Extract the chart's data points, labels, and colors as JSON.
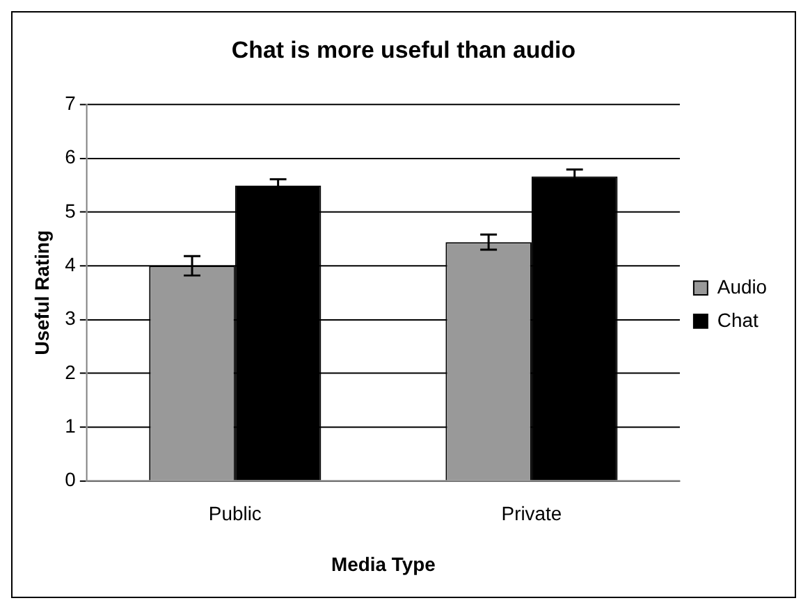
{
  "chart_data": {
    "type": "bar",
    "title": "Chat is more useful than audio",
    "xlabel": "Media Type",
    "ylabel": "Useful Rating",
    "categories": [
      "Public",
      "Private"
    ],
    "series": [
      {
        "name": "Audio",
        "color": "#999999",
        "values": [
          4.0,
          4.44
        ],
        "errors": [
          0.18,
          0.14
        ]
      },
      {
        "name": "Chat",
        "color": "#000000",
        "values": [
          5.49,
          5.66
        ],
        "errors": [
          0.12,
          0.13
        ]
      }
    ],
    "ylim": [
      0,
      7
    ],
    "yticks": [
      0,
      1,
      2,
      3,
      4,
      5,
      6,
      7
    ],
    "grid": "y",
    "legend": "right"
  }
}
